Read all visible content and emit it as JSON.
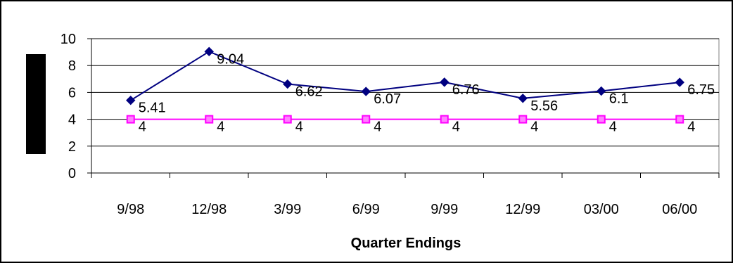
{
  "chart_data": {
    "type": "line",
    "categories": [
      "9/98",
      "12/98",
      "3/99",
      "6/99",
      "9/99",
      "12/99",
      "03/00",
      "06/00"
    ],
    "series": [
      {
        "values": [
          5.41,
          9.04,
          6.62,
          6.07,
          6.76,
          5.56,
          6.1,
          6.75
        ],
        "labels": [
          "5.41",
          "9.04",
          "6.62",
          "6.07",
          "6.76",
          "5.56",
          "6.1",
          "6.75"
        ],
        "color": "#000080",
        "marker": "diamond"
      },
      {
        "values": [
          4,
          4,
          4,
          4,
          4,
          4,
          4,
          4
        ],
        "labels": [
          "4",
          "4",
          "4",
          "4",
          "4",
          "4",
          "4",
          "4"
        ],
        "color": "#ff00ff",
        "marker": "square"
      }
    ],
    "xlabel": "Quarter Endings",
    "ylabel": "",
    "ylim": [
      0,
      10
    ],
    "yticks": [
      "0",
      "2",
      "4",
      "6",
      "8",
      "10"
    ],
    "grid": true,
    "legend": "none"
  }
}
